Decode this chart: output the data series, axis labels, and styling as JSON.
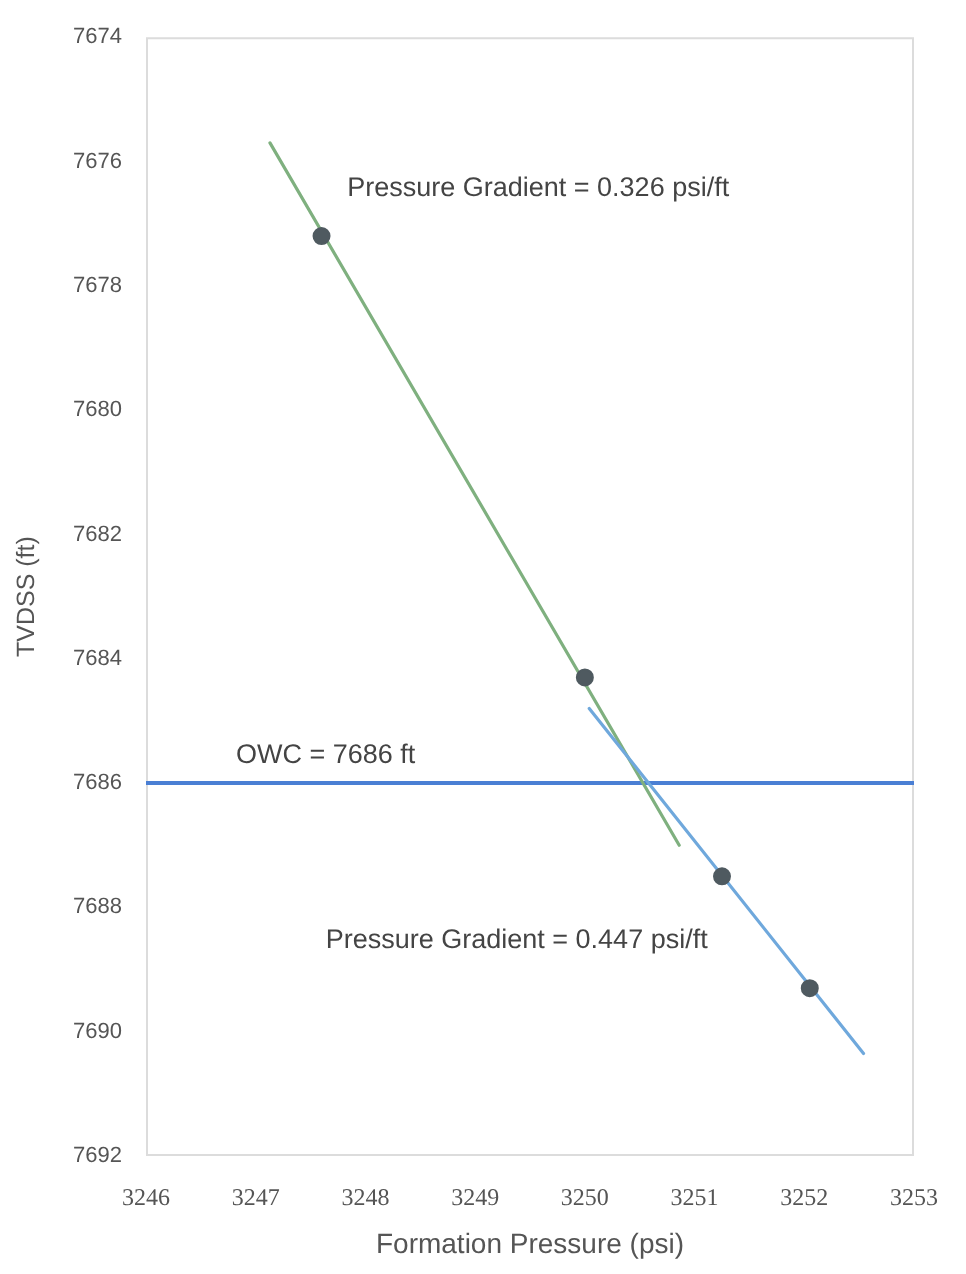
{
  "chart_data": {
    "type": "scatter",
    "xlabel": "Formation Pressure (psi)",
    "ylabel": "TVDSS (ft)",
    "xlim": [
      3246,
      3253
    ],
    "xticks": [
      3246,
      3247,
      3248,
      3249,
      3250,
      3251,
      3252,
      3253
    ],
    "ylim": [
      7692,
      7674
    ],
    "yticks": [
      7674,
      7676,
      7678,
      7680,
      7682,
      7684,
      7686,
      7688,
      7690,
      7692
    ],
    "grid": false,
    "legend": false,
    "marker": "circle",
    "series": [
      {
        "type": "line",
        "color": "#7fb07f",
        "marker": "none",
        "x": [
          3247.13,
          3250.86
        ],
        "values": [
          7675.7,
          7687.0
        ]
      },
      {
        "type": "line",
        "color": "#6fa8dc",
        "marker": "none",
        "x": [
          3250.04,
          3252.54
        ],
        "values": [
          7684.8,
          7690.35
        ]
      },
      {
        "color": "#4f5a60",
        "x": [
          3247.6,
          3250.0,
          3251.25,
          3252.05
        ],
        "values": [
          7677.2,
          7684.3,
          7687.5,
          7689.3
        ]
      }
    ],
    "ref_lines": [
      {
        "axis": "y",
        "value": 7686,
        "label": "OWC = 7686 ft",
        "color": "#4a7fd4"
      }
    ],
    "annotations": [
      "Pressure Gradient = 0.326 psi/ft",
      "Pressure Gradient = 0.447 psi/ft"
    ]
  }
}
